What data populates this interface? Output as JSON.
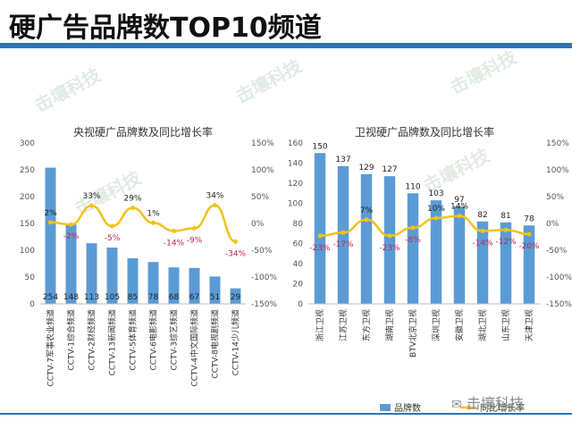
{
  "page": {
    "title": "硬广告品牌数TOP10频道",
    "watermark": "击壤科技",
    "footer_logo_text": "击壤科技"
  },
  "colors": {
    "bar": "#5b9bd5",
    "line": "#f2c314",
    "accent_rule": "#2e75b6",
    "growth_label": "#c0264e"
  },
  "chart_data": [
    {
      "type": "bar",
      "title": "央视硬广品牌数及同比增长率",
      "categories": [
        "CCTV-7军事农业频道",
        "CCTV-1综合频道",
        "CCTV-2财经频道",
        "CCTV-13新闻频道",
        "CCTV-5体育频道",
        "CCTV-6电影频道",
        "CCTV-3综艺频道",
        "CCTV-4中文国际频道",
        "CCTV-8电视剧频道",
        "CCTV-14少儿频道"
      ],
      "series": [
        {
          "type": "bar",
          "values": [
            254,
            148,
            113,
            105,
            85,
            78,
            68,
            67,
            51,
            29
          ],
          "value_labels": [
            "254",
            "148",
            "113",
            "105",
            "85",
            "78",
            "68",
            "67",
            "51",
            "29"
          ]
        },
        {
          "type": "line",
          "values": [
            2,
            -2,
            33,
            -5,
            29,
            1,
            -14,
            -9,
            34,
            -34
          ],
          "value_labels": [
            "2%",
            "-2%",
            "33%",
            "-5%",
            "29%",
            "1%",
            "-14%",
            "-9%",
            "34%",
            "-34%"
          ]
        }
      ],
      "y_left": {
        "ylim": [
          0,
          300
        ],
        "ticks": [
          "0",
          "50",
          "100",
          "150",
          "200",
          "250",
          "300"
        ]
      },
      "y_right": {
        "ylim": [
          -150,
          150
        ],
        "ticks": [
          "-150%",
          "-100%",
          "-50%",
          "0%",
          "50%",
          "100%",
          "150%"
        ]
      }
    },
    {
      "type": "bar",
      "title": "卫视硬广品牌数及同比增长率",
      "categories": [
        "浙江卫视",
        "江苏卫视",
        "东方卫视",
        "湖南卫视",
        "BTV北京卫视",
        "深圳卫视",
        "安徽卫视",
        "湖北卫视",
        "山东卫视",
        "天津卫视"
      ],
      "series": [
        {
          "name": "品牌数",
          "type": "bar",
          "values": [
            150,
            137,
            129,
            127,
            110,
            103,
            97,
            82,
            81,
            78
          ],
          "value_labels": [
            "150",
            "137",
            "129",
            "127",
            "110",
            "103",
            "97",
            "82",
            "81",
            "78"
          ]
        },
        {
          "name": "同比增长率",
          "type": "line",
          "values": [
            -23,
            -17,
            7,
            -23,
            -8,
            10,
            14,
            -14,
            -12,
            -20
          ],
          "value_labels": [
            "-23%",
            "-17%",
            "7%",
            "-23%",
            "-8%",
            "10%",
            "14%",
            "-14%",
            "-12%",
            "-20%"
          ]
        }
      ],
      "y_left": {
        "ylim": [
          0,
          160
        ],
        "ticks": [
          "0",
          "20",
          "40",
          "60",
          "80",
          "100",
          "120",
          "140",
          "160"
        ]
      },
      "y_right": {
        "ylim": [
          -150,
          150
        ],
        "ticks": [
          "-150%",
          "-100%",
          "-50%",
          "0%",
          "50%",
          "100%",
          "150%"
        ]
      },
      "legend": {
        "placement": "bottom",
        "items": [
          "品牌数",
          "同比增长率"
        ]
      }
    }
  ]
}
